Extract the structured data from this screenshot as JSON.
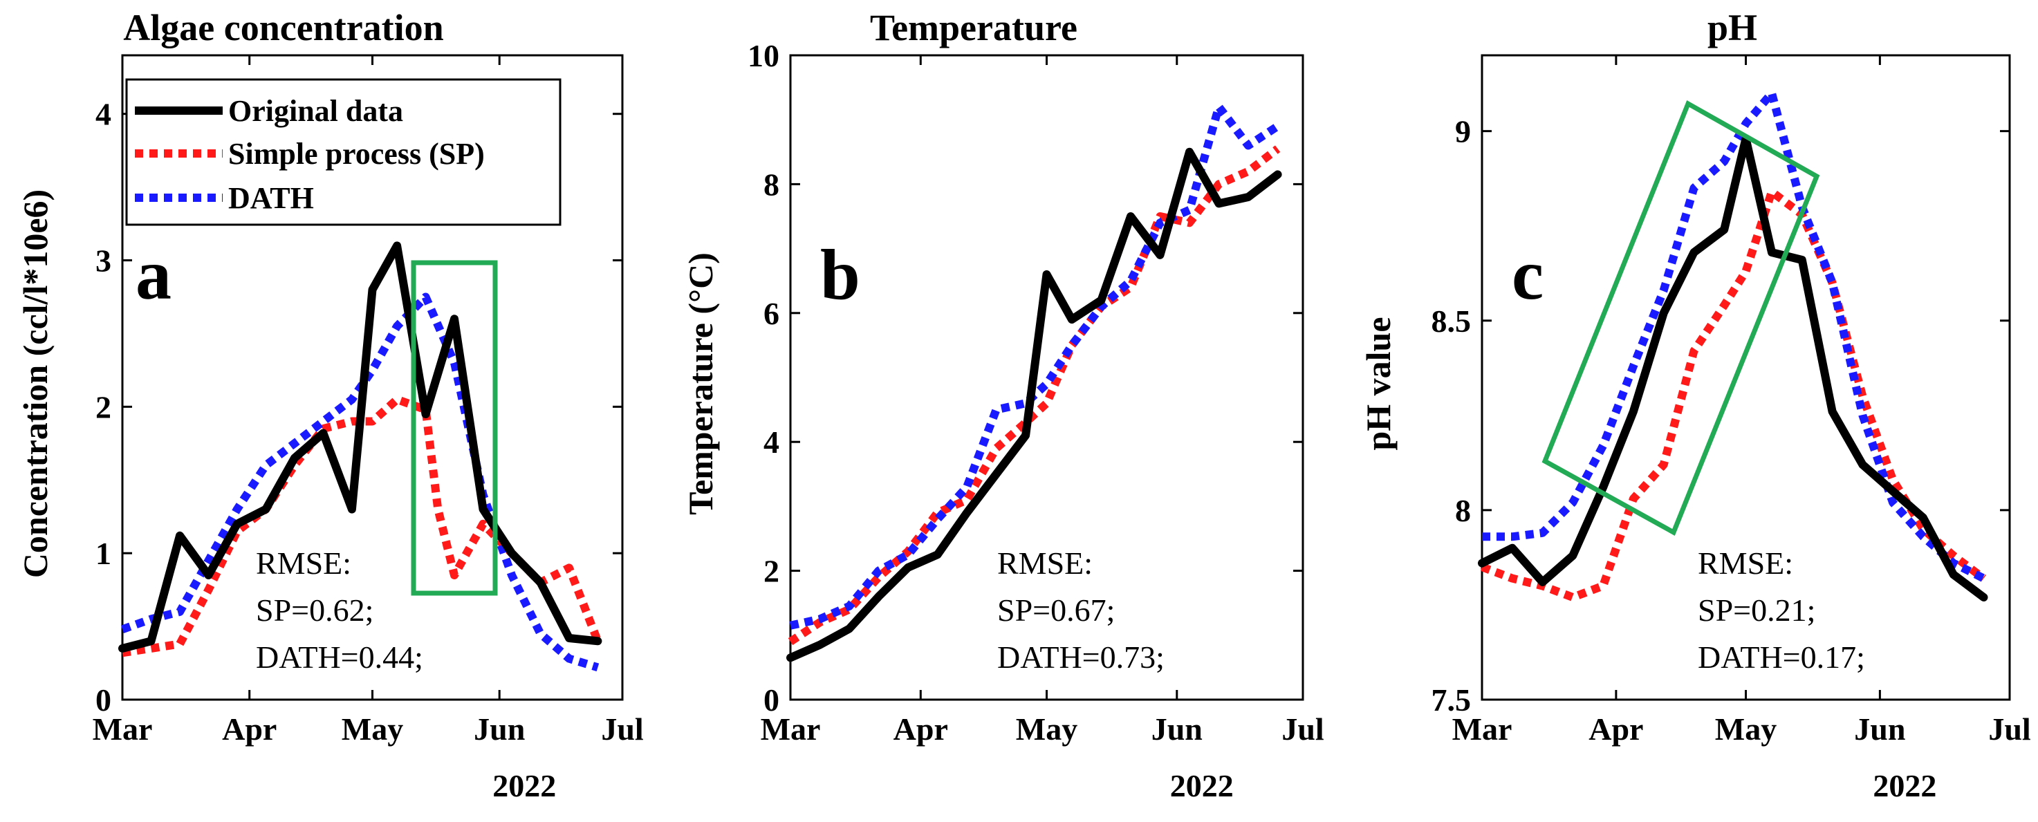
{
  "chart_data": [
    {
      "type": "line",
      "panel_letter": "a",
      "title": "Algae concentration",
      "ylabel": "Concentration (ccl/l*10e6)",
      "x_ticks": [
        "Mar",
        "Apr",
        "May",
        "Jun",
        "Jul"
      ],
      "x_year": "2022",
      "ylim": [
        0,
        4.4
      ],
      "y_ticks": [
        "0",
        "1",
        "2",
        "3",
        "4"
      ],
      "series": [
        {
          "name": "Original data",
          "color": "#000000",
          "style": "solid",
          "x": [
            "2022-03-01",
            "2022-03-08",
            "2022-03-15",
            "2022-03-22",
            "2022-03-29",
            "2022-04-05",
            "2022-04-12",
            "2022-04-19",
            "2022-04-26",
            "2022-05-01",
            "2022-05-07",
            "2022-05-14",
            "2022-05-21",
            "2022-05-28",
            "2022-06-04",
            "2022-06-11",
            "2022-06-18",
            "2022-06-25"
          ],
          "y": [
            0.35,
            0.4,
            1.12,
            0.85,
            1.2,
            1.3,
            1.65,
            1.82,
            1.3,
            2.8,
            3.1,
            1.95,
            2.6,
            1.3,
            1.0,
            0.8,
            0.42,
            0.4
          ]
        },
        {
          "name": "Simple process (SP)",
          "color": "#ff1a1a",
          "style": "dotted",
          "x": [
            "2022-03-01",
            "2022-03-08",
            "2022-03-15",
            "2022-03-22",
            "2022-03-29",
            "2022-04-05",
            "2022-04-12",
            "2022-04-19",
            "2022-04-26",
            "2022-05-01",
            "2022-05-07",
            "2022-05-14",
            "2022-05-17",
            "2022-05-21",
            "2022-05-24",
            "2022-05-28",
            "2022-06-04",
            "2022-06-11",
            "2022-06-18",
            "2022-06-25"
          ],
          "y": [
            0.32,
            0.35,
            0.38,
            0.75,
            1.15,
            1.3,
            1.6,
            1.85,
            1.9,
            1.9,
            2.05,
            1.98,
            1.3,
            0.85,
            1.0,
            1.2,
            1.0,
            0.8,
            0.9,
            0.4
          ]
        },
        {
          "name": "DATH",
          "color": "#1a1aff",
          "style": "dotted",
          "x": [
            "2022-03-01",
            "2022-03-08",
            "2022-03-15",
            "2022-03-22",
            "2022-03-29",
            "2022-04-05",
            "2022-04-12",
            "2022-04-19",
            "2022-04-26",
            "2022-05-01",
            "2022-05-07",
            "2022-05-14",
            "2022-05-21",
            "2022-05-28",
            "2022-06-04",
            "2022-06-11",
            "2022-06-18",
            "2022-06-25"
          ],
          "y": [
            0.48,
            0.55,
            0.6,
            0.95,
            1.3,
            1.6,
            1.75,
            1.9,
            2.05,
            2.25,
            2.55,
            2.75,
            2.3,
            1.4,
            0.85,
            0.45,
            0.28,
            0.22
          ]
        }
      ],
      "legend": {
        "position": "top-left",
        "entries": [
          "Original data",
          "Simple process (SP)",
          "DATH"
        ]
      },
      "annotation_lines": [
        "RMSE:",
        "SP=0.62;",
        "DATH=0.44;"
      ],
      "highlight_color": "#22aa55"
    },
    {
      "type": "line",
      "panel_letter": "b",
      "title": "Temperature",
      "ylabel": "Temperature (°C)",
      "x_ticks": [
        "Mar",
        "Apr",
        "May",
        "Jun",
        "Jul"
      ],
      "x_year": "2022",
      "ylim": [
        0,
        10
      ],
      "y_ticks": [
        "0",
        "2",
        "4",
        "6",
        "8",
        "10"
      ],
      "series": [
        {
          "name": "Original data",
          "color": "#000000",
          "style": "solid",
          "x": [
            "2022-03-01",
            "2022-03-08",
            "2022-03-15",
            "2022-03-22",
            "2022-03-29",
            "2022-04-05",
            "2022-04-12",
            "2022-04-19",
            "2022-04-26",
            "2022-05-01",
            "2022-05-07",
            "2022-05-14",
            "2022-05-21",
            "2022-05-28",
            "2022-06-04",
            "2022-06-11",
            "2022-06-18",
            "2022-06-25"
          ],
          "y": [
            0.65,
            0.85,
            1.1,
            1.6,
            2.05,
            2.25,
            2.9,
            3.5,
            4.1,
            6.6,
            5.9,
            6.2,
            7.5,
            6.9,
            8.5,
            7.7,
            7.8,
            8.15
          ]
        },
        {
          "name": "Simple process (SP)",
          "color": "#ff1a1a",
          "style": "dotted",
          "x": [
            "2022-03-01",
            "2022-03-08",
            "2022-03-15",
            "2022-03-22",
            "2022-03-29",
            "2022-04-05",
            "2022-04-12",
            "2022-04-19",
            "2022-04-26",
            "2022-05-01",
            "2022-05-07",
            "2022-05-14",
            "2022-05-21",
            "2022-05-28",
            "2022-06-04",
            "2022-06-11",
            "2022-06-18",
            "2022-06-25"
          ],
          "y": [
            0.9,
            1.2,
            1.4,
            1.9,
            2.3,
            2.9,
            3.1,
            3.9,
            4.3,
            4.6,
            5.5,
            6.1,
            6.4,
            7.5,
            7.4,
            8.0,
            8.2,
            8.55
          ]
        },
        {
          "name": "DATH",
          "color": "#1a1aff",
          "style": "dotted",
          "x": [
            "2022-03-01",
            "2022-03-08",
            "2022-03-15",
            "2022-03-22",
            "2022-03-29",
            "2022-04-05",
            "2022-04-12",
            "2022-04-19",
            "2022-04-26",
            "2022-05-01",
            "2022-05-07",
            "2022-05-14",
            "2022-05-21",
            "2022-05-28",
            "2022-06-04",
            "2022-06-11",
            "2022-06-18",
            "2022-06-25"
          ],
          "y": [
            1.15,
            1.25,
            1.45,
            2.0,
            2.25,
            2.8,
            3.3,
            4.5,
            4.6,
            4.9,
            5.5,
            6.1,
            6.5,
            7.4,
            7.6,
            9.2,
            8.6,
            8.9
          ]
        }
      ],
      "annotation_lines": [
        "RMSE:",
        "SP=0.67;",
        "DATH=0.73;"
      ]
    },
    {
      "type": "line",
      "panel_letter": "c",
      "title": "pH",
      "ylabel": "pH value",
      "x_ticks": [
        "Mar",
        "Apr",
        "May",
        "Jun",
        "Jul"
      ],
      "x_year": "2022",
      "ylim": [
        7.5,
        9.2
      ],
      "y_ticks": [
        "7.5",
        "8",
        "8.5",
        "9"
      ],
      "series": [
        {
          "name": "Original data",
          "color": "#000000",
          "style": "solid",
          "x": [
            "2022-03-01",
            "2022-03-08",
            "2022-03-15",
            "2022-03-22",
            "2022-03-29",
            "2022-04-05",
            "2022-04-12",
            "2022-04-19",
            "2022-04-26",
            "2022-05-01",
            "2022-05-07",
            "2022-05-14",
            "2022-05-21",
            "2022-05-28",
            "2022-06-04",
            "2022-06-11",
            "2022-06-18",
            "2022-06-25"
          ],
          "y": [
            7.86,
            7.9,
            7.81,
            7.88,
            8.06,
            8.26,
            8.52,
            8.68,
            8.74,
            8.98,
            8.68,
            8.66,
            8.26,
            8.12,
            8.05,
            7.98,
            7.83,
            7.77
          ]
        },
        {
          "name": "Simple process (SP)",
          "color": "#ff1a1a",
          "style": "dotted",
          "x": [
            "2022-03-01",
            "2022-03-08",
            "2022-03-15",
            "2022-03-22",
            "2022-03-29",
            "2022-04-05",
            "2022-04-12",
            "2022-04-19",
            "2022-04-26",
            "2022-05-01",
            "2022-05-07",
            "2022-05-14",
            "2022-05-21",
            "2022-05-28",
            "2022-06-04",
            "2022-06-11",
            "2022-06-18",
            "2022-06-25"
          ],
          "y": [
            7.85,
            7.82,
            7.8,
            7.77,
            7.8,
            8.03,
            8.12,
            8.42,
            8.54,
            8.63,
            8.84,
            8.78,
            8.6,
            8.3,
            8.08,
            7.95,
            7.88,
            7.82
          ]
        },
        {
          "name": "DATH",
          "color": "#1a1aff",
          "style": "dotted",
          "x": [
            "2022-03-01",
            "2022-03-08",
            "2022-03-15",
            "2022-03-22",
            "2022-03-29",
            "2022-04-05",
            "2022-04-12",
            "2022-04-19",
            "2022-04-26",
            "2022-05-01",
            "2022-05-07",
            "2022-05-14",
            "2022-05-21",
            "2022-05-28",
            "2022-06-04",
            "2022-06-11",
            "2022-06-18",
            "2022-06-25"
          ],
          "y": [
            7.93,
            7.93,
            7.94,
            8.02,
            8.17,
            8.38,
            8.58,
            8.85,
            8.92,
            9.02,
            9.1,
            8.8,
            8.6,
            8.25,
            8.02,
            7.93,
            7.86,
            7.82
          ]
        }
      ],
      "annotation_lines": [
        "RMSE:",
        "SP=0.21;",
        "DATH=0.17;"
      ],
      "highlight_color": "#22aa55"
    }
  ]
}
